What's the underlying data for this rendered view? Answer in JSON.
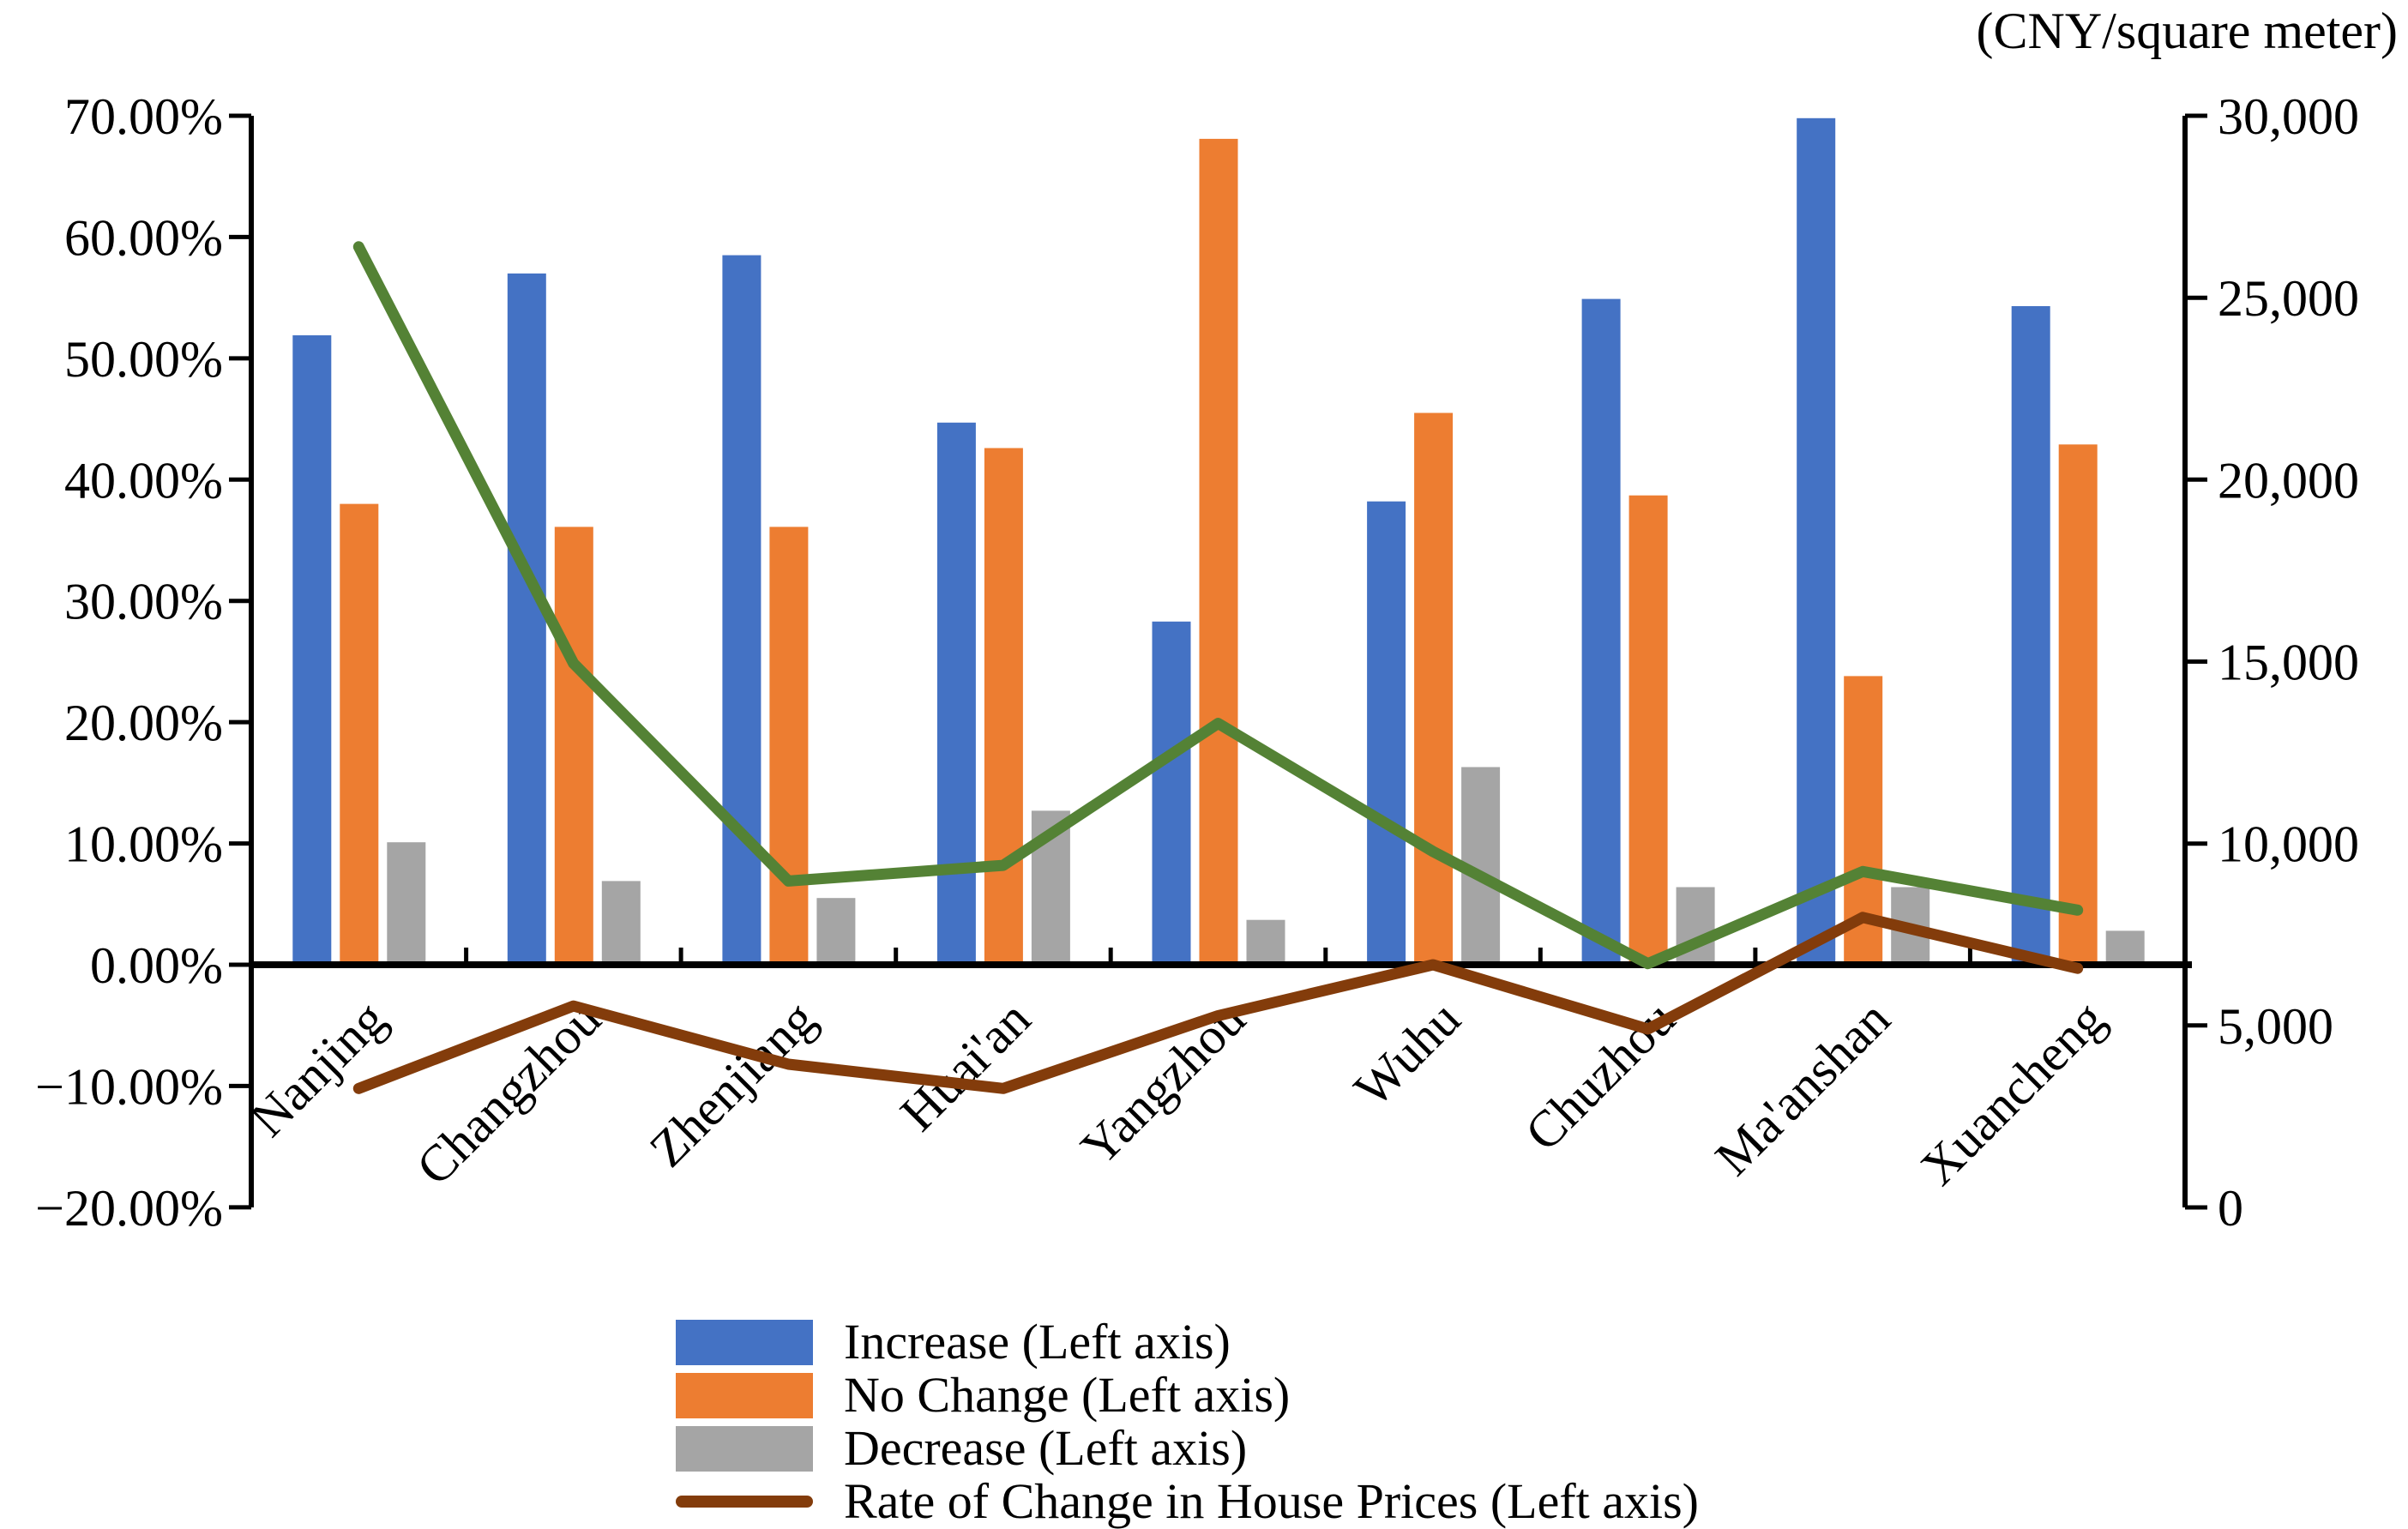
{
  "chart": {
    "right_axis_title": "(CNY/square meter)",
    "left_axis": {
      "tick_labels": [
        "70.00%",
        "60.00%",
        "50.00%",
        "40.00%",
        "30.00%",
        "20.00%",
        "10.00%",
        "0.00%",
        "−10.00%",
        "−20.00%"
      ],
      "tick_values": [
        70,
        60,
        50,
        40,
        30,
        20,
        10,
        0,
        -10,
        -20
      ]
    },
    "right_axis": {
      "tick_labels": [
        "30,000",
        "25,000",
        "20,000",
        "15,000",
        "10,000",
        "5,000",
        "0"
      ],
      "tick_values": [
        30000,
        25000,
        20000,
        15000,
        10000,
        5000,
        0
      ]
    },
    "legend": [
      {
        "label": "Increase (Left axis)",
        "color": "#4472C4",
        "swatch": "rect"
      },
      {
        "label": "No Change (Left axis)",
        "color": "#ED7D31",
        "swatch": "rect"
      },
      {
        "label": "Decrease (Left axis)",
        "color": "#A5A5A5",
        "swatch": "rect"
      },
      {
        "label": "Rate of Change in House Prices (Left axis)",
        "color": "#833C0B",
        "swatch": "line"
      }
    ],
    "colors": {
      "increase": "#4472C4",
      "no_change": "#ED7D31",
      "decrease": "#A5A5A5",
      "rate_of_change_line": "#833C0B",
      "house_price_line": "#548235",
      "axis": "#000000"
    }
  },
  "chart_data": {
    "type": "bar+line",
    "categories": [
      "Nanjing",
      "Changzhou",
      "Zhenjiang",
      "Huai'an",
      "Yangzhou",
      "Wuhu",
      "Chuzhou",
      "Ma'anshan",
      "Xuancheng"
    ],
    "series": [
      {
        "name": "Increase (Left axis)",
        "type": "bar",
        "axis": "left",
        "unit": "%",
        "color": "#4472C4",
        "values": [
          51.9,
          57.0,
          58.5,
          44.7,
          28.3,
          38.2,
          54.9,
          69.8,
          54.3
        ]
      },
      {
        "name": "No Change (Left axis)",
        "type": "bar",
        "axis": "left",
        "unit": "%",
        "color": "#ED7D31",
        "values": [
          38.0,
          36.1,
          36.1,
          42.6,
          68.1,
          45.5,
          38.7,
          23.8,
          42.9
        ]
      },
      {
        "name": "Decrease (Left axis)",
        "type": "bar",
        "axis": "left",
        "unit": "%",
        "color": "#A5A5A5",
        "values": [
          10.1,
          6.9,
          5.5,
          12.7,
          3.7,
          16.3,
          6.4,
          6.4,
          2.8
        ]
      },
      {
        "name": "Rate of Change in House Prices (Left axis)",
        "type": "line",
        "axis": "left",
        "unit": "%",
        "color": "#833C0B",
        "in_legend": true,
        "values": [
          -10.2,
          -3.4,
          -8.2,
          -10.2,
          -4.2,
          0.0,
          -5.3,
          3.9,
          -0.3
        ]
      },
      {
        "name": "house-price-line",
        "type": "line",
        "axis": "right",
        "unit": "CNY/square meter",
        "color": "#548235",
        "in_legend": false,
        "values": [
          26400,
          14950,
          8970,
          9400,
          13300,
          9780,
          6700,
          9230,
          8170
        ]
      }
    ],
    "left_ylim": [
      -20,
      70
    ],
    "right_ylim": [
      0,
      30000
    ],
    "grid": false,
    "legend_position": "bottom"
  }
}
